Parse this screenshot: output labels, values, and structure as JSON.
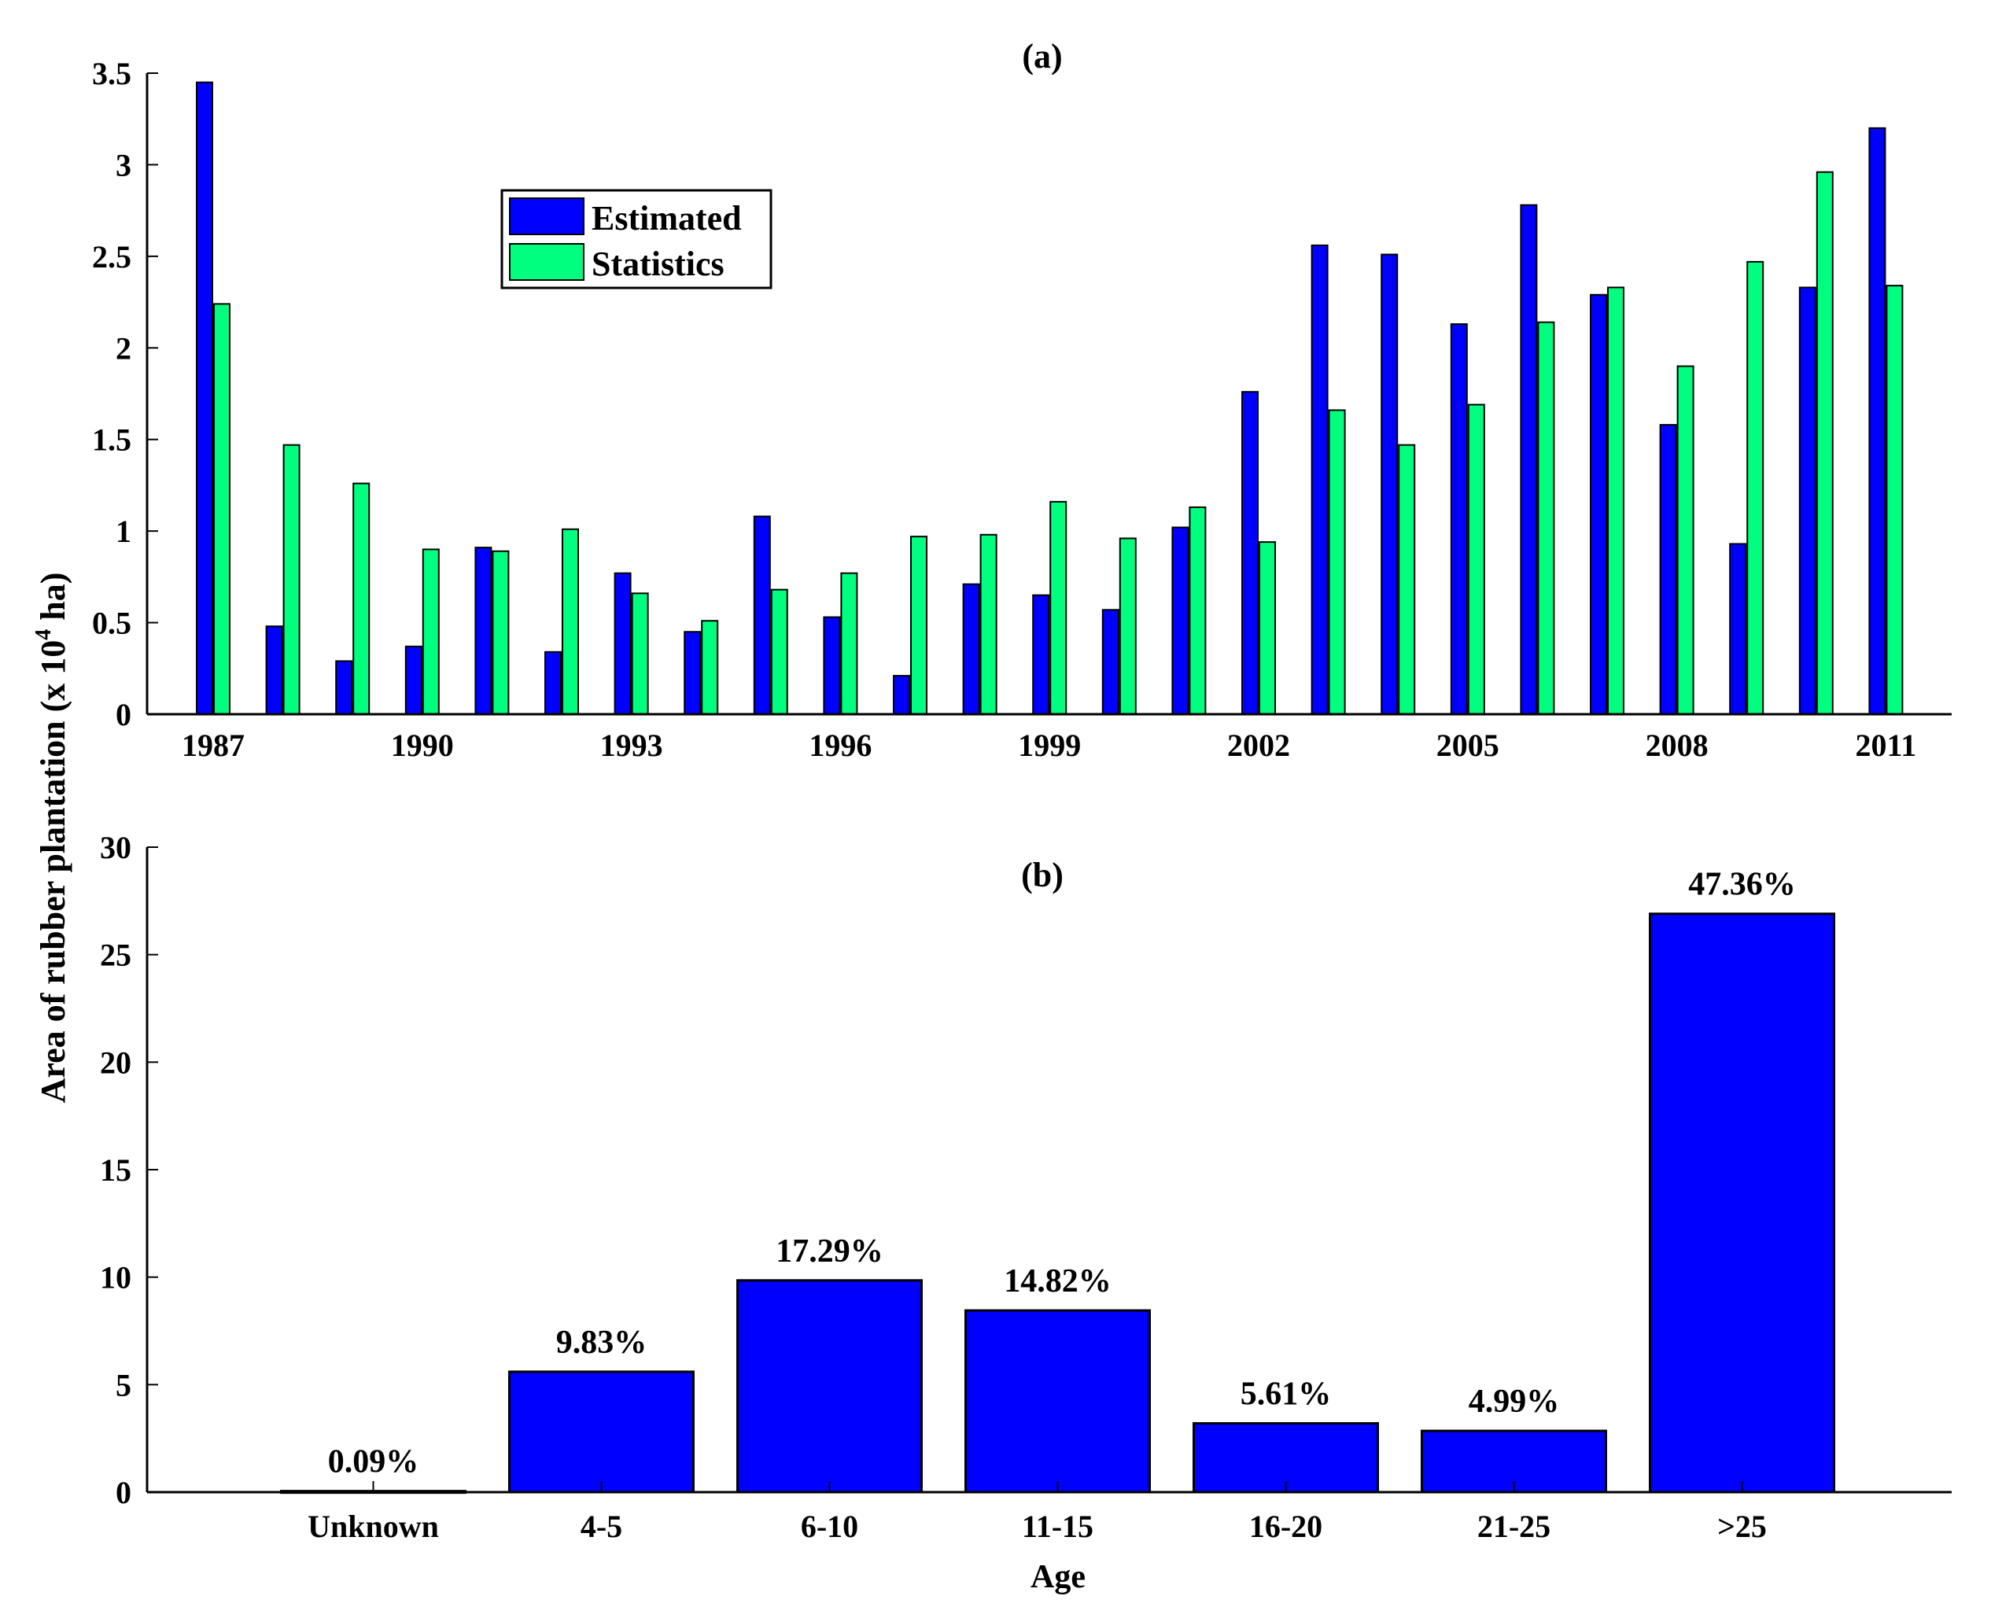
{
  "shared_ylabel": {
    "pre": "Area of rubber plantation (x 10",
    "exp": "4",
    "post": " ha)"
  },
  "chart_data": [
    {
      "type": "bar",
      "title": "(a)",
      "xlabel": "",
      "ylabel": "Area of rubber plantation (x 10^4 ha)",
      "ylim": [
        0,
        3.5
      ],
      "yticks": [
        "0",
        "0.5",
        "1",
        "1.5",
        "2",
        "2.5",
        "3",
        "3.5"
      ],
      "categories": [
        "1987",
        "1988",
        "1989",
        "1990",
        "1991",
        "1992",
        "1993",
        "1994",
        "1995",
        "1996",
        "1997",
        "1998",
        "1999",
        "2000",
        "2001",
        "2002",
        "2003",
        "2004",
        "2005",
        "2006",
        "2007",
        "2008",
        "2009",
        "2010",
        "2011"
      ],
      "xtick_labels": [
        "1987",
        "1990",
        "1993",
        "1996",
        "1999",
        "2002",
        "2005",
        "2008",
        "2011"
      ],
      "legend": {
        "position": "upper-left-center",
        "entries": [
          "Estimated",
          "Statistics"
        ]
      },
      "series": [
        {
          "name": "Estimated",
          "color": "#0000ff",
          "values": [
            3.45,
            0.48,
            0.29,
            0.37,
            0.91,
            0.34,
            0.77,
            0.45,
            1.08,
            0.53,
            0.21,
            0.71,
            0.65,
            0.57,
            1.02,
            1.76,
            2.56,
            2.51,
            2.13,
            2.78,
            2.29,
            1.58,
            0.93,
            2.33,
            3.2
          ]
        },
        {
          "name": "Statistics",
          "color": "#00ff7f",
          "values": [
            2.24,
            1.47,
            1.26,
            0.9,
            0.89,
            1.01,
            0.66,
            0.51,
            0.68,
            0.77,
            0.97,
            0.98,
            1.16,
            0.96,
            1.13,
            0.94,
            1.66,
            1.47,
            1.69,
            2.14,
            2.33,
            1.9,
            2.47,
            2.96,
            2.34
          ]
        }
      ]
    },
    {
      "type": "bar",
      "title": "(b)",
      "xlabel": "Age",
      "ylabel": "Area of rubber plantation (x 10^4 ha)",
      "ylim": [
        0,
        30
      ],
      "yticks": [
        "0",
        "5",
        "10",
        "15",
        "20",
        "25",
        "30"
      ],
      "categories": [
        "Unknown",
        "4-5",
        "6-10",
        "11-15",
        "16-20",
        "21-25",
        ">25"
      ],
      "values": [
        0.05,
        5.6,
        9.85,
        8.45,
        3.2,
        2.85,
        26.9
      ],
      "data_labels": [
        "0.09%",
        "9.83%",
        "17.29%",
        "14.82%",
        "5.61%",
        "4.99%",
        "47.36%"
      ],
      "color": "#0000ff"
    }
  ]
}
